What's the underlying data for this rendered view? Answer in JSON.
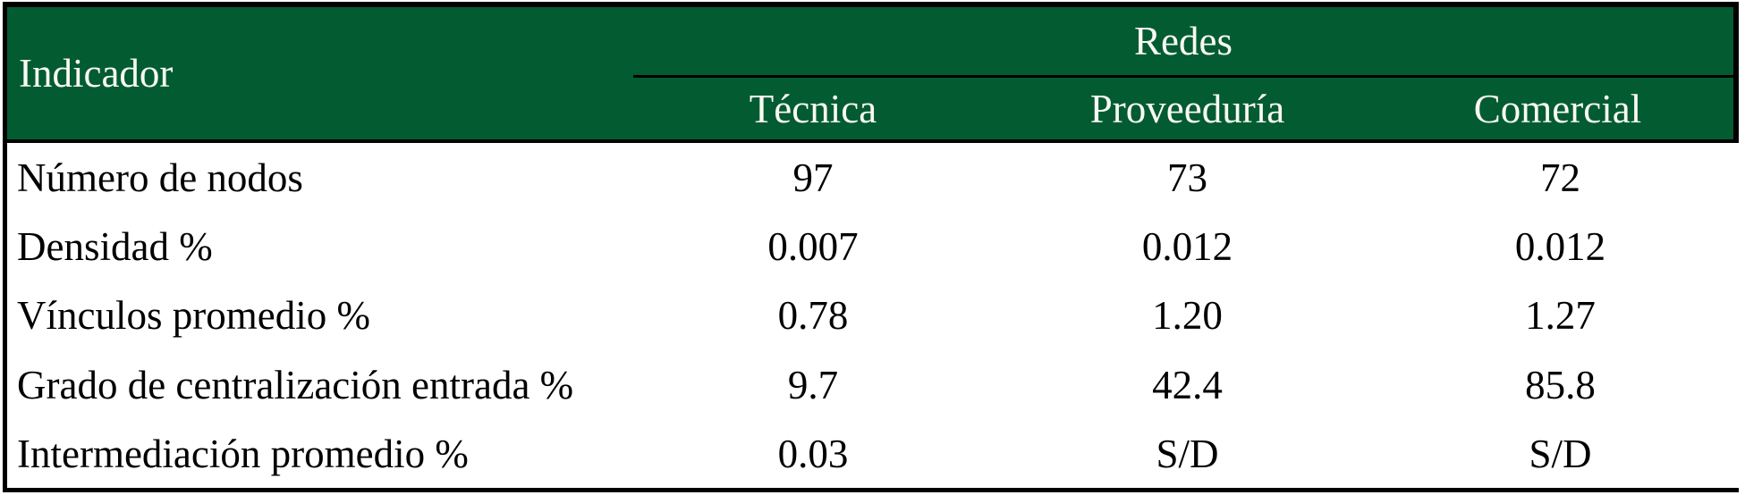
{
  "table": {
    "corner_header": "Indicador",
    "group_header": "Redes",
    "sub_headers": [
      "Técnica",
      "Proveeduría",
      "Comercial"
    ],
    "rows": [
      {
        "label": "Número de nodos",
        "values": [
          "97",
          "73",
          "72"
        ]
      },
      {
        "label": "Densidad %",
        "values": [
          "0.007",
          "0.012",
          "0.012"
        ]
      },
      {
        "label": "Vínculos promedio %",
        "values": [
          "0.78",
          "1.20",
          "1.27"
        ]
      },
      {
        "label": "Grado de centralización entrada %",
        "values": [
          "9.7",
          "42.4",
          "85.8"
        ]
      },
      {
        "label": "Intermediación promedio %",
        "values": [
          "0.03",
          "S/D",
          "S/D"
        ]
      }
    ],
    "colors": {
      "header_bg": "#035c31",
      "header_text": "#faf9f4",
      "body_text": "#000000",
      "border": "#000000",
      "body_bg": "#ffffff"
    }
  },
  "chart_data": {
    "type": "table",
    "title": "",
    "corner_header": "Indicador",
    "group_header": {
      "label": "Redes",
      "spans": [
        "Técnica",
        "Proveeduría",
        "Comercial"
      ]
    },
    "columns": [
      "Indicador",
      "Técnica",
      "Proveeduría",
      "Comercial"
    ],
    "rows": [
      [
        "Número de nodos",
        "97",
        "73",
        "72"
      ],
      [
        "Densidad %",
        "0.007",
        "0.012",
        "0.012"
      ],
      [
        "Vínculos promedio %",
        "0.78",
        "1.20",
        "1.27"
      ],
      [
        "Grado de centralización entrada %",
        "9.7",
        "42.4",
        "85.8"
      ],
      [
        "Intermediación promedio %",
        "0.03",
        "S/D",
        "S/D"
      ]
    ],
    "missing_value_marker": "S/D"
  }
}
